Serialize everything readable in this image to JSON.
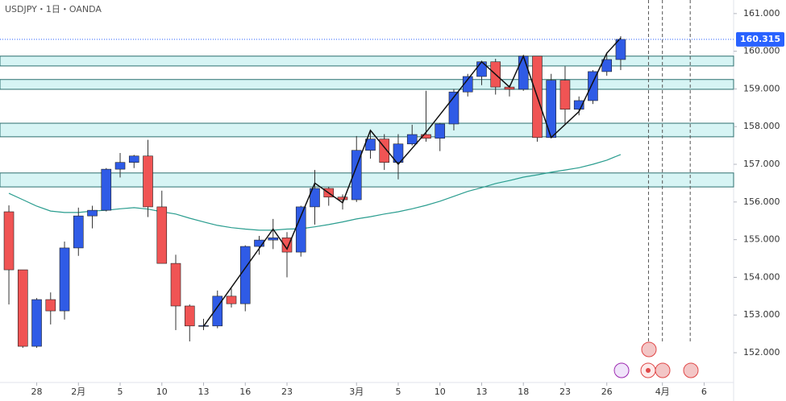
{
  "chart_data": {
    "type": "candlestick",
    "title": "USDJPY・1日・OANDA",
    "xlim": [
      -0.64,
      52.12
    ],
    "ylim": [
      151.21,
      161.36
    ],
    "yticks": [
      {
        "value": 152,
        "label": "152.000"
      },
      {
        "value": 153,
        "label": "153.000"
      },
      {
        "value": 154,
        "label": "154.000"
      },
      {
        "value": 155,
        "label": "155.000"
      },
      {
        "value": 156,
        "label": "156.000"
      },
      {
        "value": 157,
        "label": "157.000"
      },
      {
        "value": 158,
        "label": "158.000"
      },
      {
        "value": 159,
        "label": "159.000"
      },
      {
        "value": 160,
        "label": "160.000"
      },
      {
        "value": 161,
        "label": "161.000"
      }
    ],
    "xticks": [
      {
        "value": 2,
        "label": "28"
      },
      {
        "value": 5,
        "label": "2月"
      },
      {
        "value": 8,
        "label": "5"
      },
      {
        "value": 11,
        "label": "10"
      },
      {
        "value": 14,
        "label": "13"
      },
      {
        "value": 17,
        "label": "16"
      },
      {
        "value": 20,
        "label": "23"
      },
      {
        "value": 25,
        "label": "3月"
      },
      {
        "value": 28,
        "label": "5"
      },
      {
        "value": 31,
        "label": "10"
      },
      {
        "value": 34,
        "label": "13"
      },
      {
        "value": 37,
        "label": "18"
      },
      {
        "value": 40,
        "label": "23"
      },
      {
        "value": 43,
        "label": "26"
      },
      {
        "value": 47,
        "label": "4月"
      },
      {
        "value": 50,
        "label": "6"
      }
    ],
    "up_color": "#2f5be6",
    "down_color": "#f05454",
    "open": [
      155.74,
      154.2,
      152.17,
      153.41,
      153.11,
      154.78,
      155.63,
      155.78,
      156.87,
      157.05,
      157.22,
      155.87,
      154.37,
      153.24,
      152.71,
      152.71,
      153.5,
      153.3,
      154.82,
      154.99,
      155.05,
      154.67,
      155.87,
      156.36,
      156.13,
      156.06,
      157.37,
      157.67,
      157.05,
      157.54,
      157.79,
      157.69,
      158.07,
      158.92,
      159.33,
      159.72,
      159.05,
      158.99,
      159.87,
      157.71,
      159.23,
      158.46,
      158.69,
      159.46,
      159.78
    ],
    "high": [
      155.91,
      154.2,
      153.45,
      153.6,
      154.95,
      155.85,
      155.9,
      156.9,
      157.3,
      157.25,
      157.65,
      156.3,
      154.6,
      153.28,
      152.9,
      153.65,
      153.7,
      154.85,
      155.1,
      155.55,
      155.2,
      155.9,
      156.85,
      156.4,
      156.2,
      157.75,
      157.9,
      157.8,
      157.8,
      158.05,
      158.95,
      158.1,
      159.0,
      159.4,
      159.75,
      159.8,
      159.1,
      159.9,
      159.87,
      159.4,
      159.6,
      158.8,
      159.5,
      159.95,
      160.4
    ],
    "low": [
      153.28,
      152.13,
      152.13,
      152.75,
      152.88,
      154.57,
      155.3,
      155.75,
      156.65,
      156.9,
      155.6,
      154.37,
      152.6,
      152.3,
      152.6,
      152.65,
      153.2,
      153.1,
      154.6,
      154.75,
      154.0,
      154.55,
      155.4,
      155.9,
      155.8,
      156.0,
      157.15,
      156.85,
      156.6,
      157.5,
      157.6,
      157.35,
      157.9,
      158.8,
      159.1,
      158.85,
      158.8,
      158.95,
      157.6,
      157.7,
      158.05,
      158.3,
      158.6,
      159.35,
      159.5
    ],
    "close": [
      154.2,
      152.17,
      153.41,
      153.11,
      154.78,
      155.63,
      155.78,
      156.87,
      157.05,
      157.22,
      155.87,
      154.37,
      153.24,
      152.71,
      152.72,
      153.5,
      153.3,
      154.82,
      154.99,
      155.05,
      154.67,
      155.87,
      156.36,
      156.13,
      156.06,
      157.37,
      157.67,
      157.05,
      157.54,
      157.79,
      157.69,
      158.07,
      158.92,
      159.33,
      159.72,
      159.05,
      158.99,
      159.87,
      157.71,
      159.23,
      158.46,
      158.69,
      159.46,
      159.78,
      160.315
    ],
    "ma": {
      "color": "#2a9d8f",
      "values": [
        156.23,
        156.06,
        155.89,
        155.76,
        155.72,
        155.72,
        155.76,
        155.78,
        155.82,
        155.85,
        155.81,
        155.74,
        155.68,
        155.57,
        155.47,
        155.38,
        155.32,
        155.28,
        155.25,
        155.25,
        155.28,
        155.29,
        155.34,
        155.4,
        155.47,
        155.55,
        155.61,
        155.68,
        155.74,
        155.82,
        155.91,
        156.02,
        156.15,
        156.28,
        156.38,
        156.49,
        156.57,
        156.66,
        156.72,
        156.79,
        156.85,
        156.91,
        157.0,
        157.11,
        157.26
      ]
    },
    "zigzag": {
      "color": "#111111",
      "x": [
        14,
        19,
        20,
        22,
        24,
        26,
        28,
        30,
        34,
        36,
        37,
        39,
        41,
        43,
        44
      ],
      "values": [
        152.7,
        155.28,
        154.75,
        156.5,
        155.98,
        157.9,
        157.0,
        157.85,
        159.72,
        159.05,
        159.87,
        157.71,
        158.4,
        159.95,
        160.35
      ]
    },
    "zones": [
      [
        159.61,
        159.87
      ],
      [
        158.99,
        159.25
      ],
      [
        157.73,
        158.09
      ],
      [
        156.4,
        156.77
      ]
    ],
    "zone_color": "#d6f4f4",
    "zone_border": "#2c6f6f",
    "last_price": 160.315,
    "last_price_color": "#2962ff",
    "event_lines": [
      46,
      47,
      49
    ]
  }
}
